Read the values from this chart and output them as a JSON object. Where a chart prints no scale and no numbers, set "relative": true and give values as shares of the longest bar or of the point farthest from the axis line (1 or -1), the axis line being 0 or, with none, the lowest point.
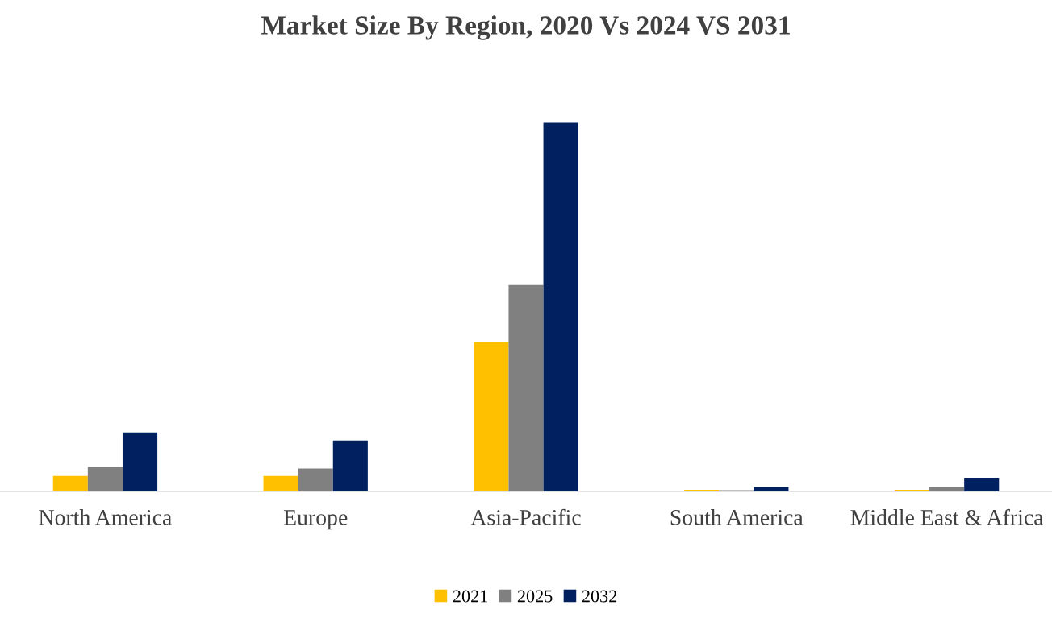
{
  "chart_data": {
    "type": "bar",
    "title": "Market Size By Region, 2020 Vs 2024 VS 2031",
    "relative": true,
    "categories": [
      "North America",
      "Europe",
      "Asia-Pacific",
      "South America",
      "Middle East & Africa"
    ],
    "series": [
      {
        "name": "2021",
        "color": "#ffc000",
        "values": [
          0.042,
          0.042,
          0.405,
          0.004,
          0.004
        ]
      },
      {
        "name": "2025",
        "color": "#808080",
        "values": [
          0.067,
          0.062,
          0.56,
          0.003,
          0.012
        ]
      },
      {
        "name": "2032",
        "color": "#002060",
        "values": [
          0.16,
          0.138,
          1,
          0.012,
          0.037
        ]
      }
    ],
    "legend": "bottom",
    "grid": false
  }
}
